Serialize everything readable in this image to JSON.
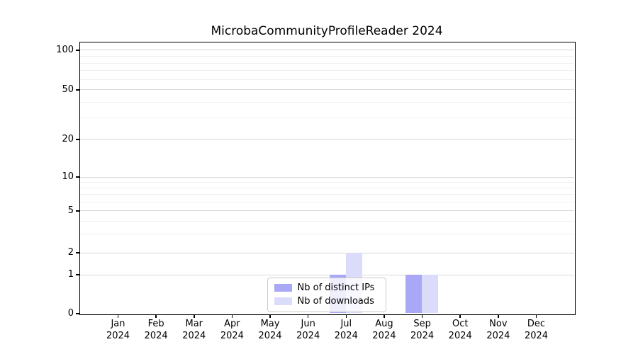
{
  "chart_data": {
    "type": "bar",
    "title": "MicrobaCommunityProfileReader 2024",
    "categories": [
      "Jan 2024",
      "Feb 2024",
      "Mar 2024",
      "Apr 2024",
      "May 2024",
      "Jun 2024",
      "Jul 2024",
      "Aug 2024",
      "Sep 2024",
      "Oct 2024",
      "Nov 2024",
      "Dec 2024"
    ],
    "months": [
      "Jan",
      "Feb",
      "Mar",
      "Apr",
      "May",
      "Jun",
      "Jul",
      "Aug",
      "Sep",
      "Oct",
      "Nov",
      "Dec"
    ],
    "year_label": "2024",
    "series": [
      {
        "name": "Nb of distinct IPs",
        "color": "#a8a8f6",
        "values": [
          0,
          0,
          0,
          0,
          0,
          0,
          1,
          0,
          1,
          0,
          0,
          0
        ]
      },
      {
        "name": "Nb of downloads",
        "color": "#dbdbfa",
        "values": [
          0,
          0,
          0,
          0,
          0,
          0,
          2,
          0,
          1,
          0,
          0,
          0
        ]
      }
    ],
    "y_ticks": [
      0,
      1,
      2,
      5,
      10,
      20,
      50,
      100
    ],
    "y_minor_ticks": [
      3,
      4,
      6,
      7,
      8,
      9,
      30,
      40,
      60,
      70,
      80,
      90
    ],
    "ylim": [
      0,
      115
    ],
    "y_scale": "log-above-1-linear-below",
    "xlabel": "",
    "ylabel": "",
    "grid": "horizontal major+minor",
    "legend_position": "lower center inside",
    "colors": {
      "major_grid": "#d7d7d7",
      "minor_grid": "#efefef",
      "axis": "#000000",
      "background": "#ffffff"
    }
  }
}
